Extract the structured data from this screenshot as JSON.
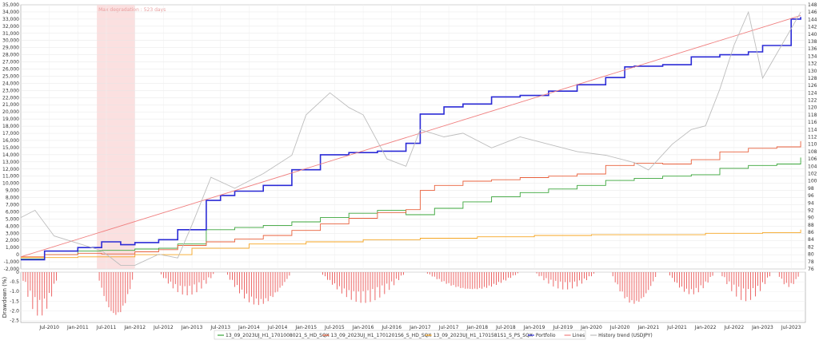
{
  "chart_data": [
    {
      "type": "line",
      "panel": "main",
      "title": "",
      "y_left": {
        "lim": [
          -2000,
          35000
        ],
        "ticks": [
          "-2,000",
          "-1,000",
          "0",
          "1,000",
          "2,000",
          "3,000",
          "4,000",
          "5,000",
          "6,000",
          "7,000",
          "8,000",
          "9,000",
          "10,000",
          "11,000",
          "12,000",
          "13,000",
          "14,000",
          "15,000",
          "16,000",
          "17,000",
          "18,000",
          "19,000",
          "20,000",
          "21,000",
          "22,000",
          "23,000",
          "24,000",
          "25,000",
          "26,000",
          "27,000",
          "28,000",
          "29,000",
          "30,000",
          "31,000",
          "32,000",
          "33,000",
          "34,000",
          "35,000"
        ]
      },
      "y_right": {
        "lim": [
          76,
          148
        ],
        "ticks": [
          "76",
          "78",
          "80",
          "82",
          "84",
          "86",
          "88",
          "90",
          "92",
          "94",
          "96",
          "98",
          "100",
          "102",
          "104",
          "106",
          "108",
          "110",
          "112",
          "114",
          "116",
          "118",
          "120",
          "122",
          "124",
          "126",
          "128",
          "130",
          "132",
          "134",
          "136",
          "138",
          "140",
          "142",
          "144",
          "146",
          "148"
        ]
      },
      "annotation": "Max degradation : 523 days",
      "degradation_span": [
        "2011-05",
        "2012-01"
      ],
      "x_ticks": [
        "Jul-2010",
        "Jan-2011",
        "Jul-2011",
        "Jan-2012",
        "Jul-2012",
        "Jan-2013",
        "Jul-2013",
        "Jan-2014",
        "Jul-2014",
        "Jan-2015",
        "Jul-2015",
        "Jan-2016",
        "Jul-2016",
        "Jan-2017",
        "Jul-2017",
        "Jan-2018",
        "Jul-2018",
        "Jan-2019",
        "Jul-2019",
        "Jan-2020",
        "Jul-2020",
        "Jan-2021",
        "Jul-2021",
        "Jan-2022",
        "Jul-2022",
        "Jan-2023",
        "Jul-2023"
      ],
      "x_range": [
        "2010-01",
        "2023-10"
      ],
      "series": [
        {
          "name": "13_09_2023UJ_H1_1701008021_S_HD_SQX",
          "color": "#3aa53a",
          "axis": "left",
          "x": [
            "2010-01",
            "2010-06",
            "2011-01",
            "2011-06",
            "2012-01",
            "2012-06",
            "2012-10",
            "2013-04",
            "2013-10",
            "2014-04",
            "2014-10",
            "2015-04",
            "2015-10",
            "2016-04",
            "2016-10",
            "2017-04",
            "2017-10",
            "2018-04",
            "2018-10",
            "2019-04",
            "2019-10",
            "2020-04",
            "2020-10",
            "2021-04",
            "2021-10",
            "2022-04",
            "2022-10",
            "2023-04",
            "2023-09"
          ],
          "values": [
            -600,
            0,
            500,
            600,
            800,
            900,
            1500,
            3500,
            3800,
            4100,
            4600,
            5200,
            5800,
            6200,
            5600,
            6500,
            7400,
            8100,
            8700,
            9200,
            9700,
            10400,
            10700,
            11000,
            11200,
            12100,
            12500,
            12700,
            13600
          ]
        },
        {
          "name": "13_09_2023UJ_H1_1701201S6_S_HD_SQX",
          "color": "#e8603c",
          "axis": "left",
          "x": [
            "2010-01",
            "2010-06",
            "2011-01",
            "2011-06",
            "2012-01",
            "2012-06",
            "2012-10",
            "2013-04",
            "2013-10",
            "2014-04",
            "2014-10",
            "2015-04",
            "2015-10",
            "2016-04",
            "2016-10",
            "2017-01",
            "2017-04",
            "2017-10",
            "2018-04",
            "2018-10",
            "2019-04",
            "2019-10",
            "2020-04",
            "2020-10",
            "2021-04",
            "2021-10",
            "2022-04",
            "2022-10",
            "2023-04",
            "2023-09"
          ],
          "values": [
            -300,
            0,
            200,
            100,
            400,
            700,
            1300,
            1800,
            2200,
            2700,
            3400,
            4300,
            5100,
            5900,
            6300,
            9000,
            9700,
            10300,
            10500,
            10800,
            11000,
            11300,
            12500,
            12800,
            12700,
            13300,
            14400,
            14900,
            15100,
            15900
          ]
        },
        {
          "name": "13_09_2023UJ_H1_1701581S1_S_PS_SQX",
          "color": "#f5a623",
          "axis": "left",
          "x": [
            "2010-01",
            "2011-01",
            "2012-01",
            "2013-01",
            "2014-01",
            "2015-01",
            "2016-01",
            "2017-01",
            "2018-01",
            "2019-01",
            "2020-01",
            "2021-01",
            "2022-01",
            "2023-01",
            "2023-09"
          ],
          "values": [
            -400,
            -300,
            0,
            900,
            1500,
            1800,
            2100,
            2300,
            2500,
            2700,
            2800,
            2800,
            3000,
            3100,
            3500
          ]
        },
        {
          "name": "Portfolio",
          "color": "#2b2bd6",
          "axis": "left",
          "x": [
            "2010-01",
            "2010-06",
            "2011-01",
            "2011-06",
            "2011-10",
            "2012-01",
            "2012-06",
            "2012-10",
            "2013-04",
            "2013-07",
            "2013-10",
            "2014-04",
            "2014-10",
            "2015-04",
            "2015-10",
            "2016-04",
            "2016-10",
            "2017-01",
            "2017-06",
            "2017-10",
            "2018-04",
            "2018-10",
            "2019-04",
            "2019-10",
            "2020-04",
            "2020-08",
            "2020-10",
            "2021-04",
            "2021-10",
            "2022-04",
            "2022-10",
            "2023-01",
            "2023-07",
            "2023-09"
          ],
          "values": [
            -700,
            500,
            1000,
            1800,
            1400,
            1700,
            2100,
            3500,
            7600,
            8300,
            8900,
            9700,
            11900,
            14000,
            14300,
            14500,
            15600,
            19700,
            20700,
            21100,
            22100,
            22300,
            22900,
            23800,
            24800,
            26300,
            26400,
            26600,
            27700,
            28000,
            28400,
            29300,
            33000,
            33300
          ]
        },
        {
          "name": "Lines",
          "color": "#f08080",
          "axis": "left",
          "x": [
            "2010-01",
            "2023-09"
          ],
          "values": [
            -300,
            33500
          ]
        },
        {
          "name": "History trend (USDJPY)",
          "color": "#bdbdbd",
          "axis": "right",
          "x": [
            "2010-01",
            "2010-04",
            "2010-08",
            "2011-01",
            "2011-06",
            "2011-10",
            "2012-01",
            "2012-06",
            "2012-10",
            "2013-01",
            "2013-05",
            "2013-10",
            "2014-04",
            "2014-10",
            "2015-01",
            "2015-06",
            "2015-10",
            "2016-01",
            "2016-06",
            "2016-10",
            "2017-01",
            "2017-06",
            "2017-10",
            "2018-04",
            "2018-10",
            "2019-04",
            "2019-10",
            "2020-04",
            "2020-10",
            "2021-01",
            "2021-06",
            "2021-10",
            "2022-01",
            "2022-04",
            "2022-07",
            "2022-10",
            "2023-01",
            "2023-05",
            "2023-09"
          ],
          "values": [
            90,
            92,
            85,
            83,
            81,
            77,
            77,
            80,
            79,
            88,
            101,
            98,
            102,
            107,
            118,
            124,
            120,
            118,
            106,
            104,
            114,
            112,
            113,
            109,
            112,
            110,
            108,
            107,
            105,
            103,
            110,
            114,
            115,
            125,
            137,
            146,
            128,
            137,
            146
          ]
        }
      ]
    },
    {
      "type": "bar",
      "panel": "drawdown",
      "ylabel": "Drawdown (%)",
      "ylim": [
        -2.6,
        0
      ],
      "ticks": [
        "0",
        "-0.5",
        "-1.0",
        "-1.5",
        "-2.0",
        "-2.5"
      ],
      "color": "#e84040",
      "segments": [
        {
          "x": [
            "2010-01",
            "2010-09"
          ],
          "max_depth": -2.3
        },
        {
          "x": [
            "2011-05",
            "2012-01"
          ],
          "max_depth": -2.5
        },
        {
          "x": [
            "2012-06",
            "2013-06"
          ],
          "max_depth": -1.2
        },
        {
          "x": [
            "2013-08",
            "2014-10"
          ],
          "max_depth": -1.8
        },
        {
          "x": [
            "2015-04",
            "2016-10"
          ],
          "max_depth": -1.6
        },
        {
          "x": [
            "2017-02",
            "2018-10"
          ],
          "max_depth": -1.0
        },
        {
          "x": [
            "2019-01",
            "2020-02"
          ],
          "max_depth": -0.9
        },
        {
          "x": [
            "2020-05",
            "2021-03"
          ],
          "max_depth": -1.8
        },
        {
          "x": [
            "2021-05",
            "2022-03"
          ],
          "max_depth": -1.2
        },
        {
          "x": [
            "2022-04",
            "2023-03"
          ],
          "max_depth": -1.5
        },
        {
          "x": [
            "2023-04",
            "2023-09"
          ],
          "max_depth": -0.8
        }
      ]
    }
  ]
}
